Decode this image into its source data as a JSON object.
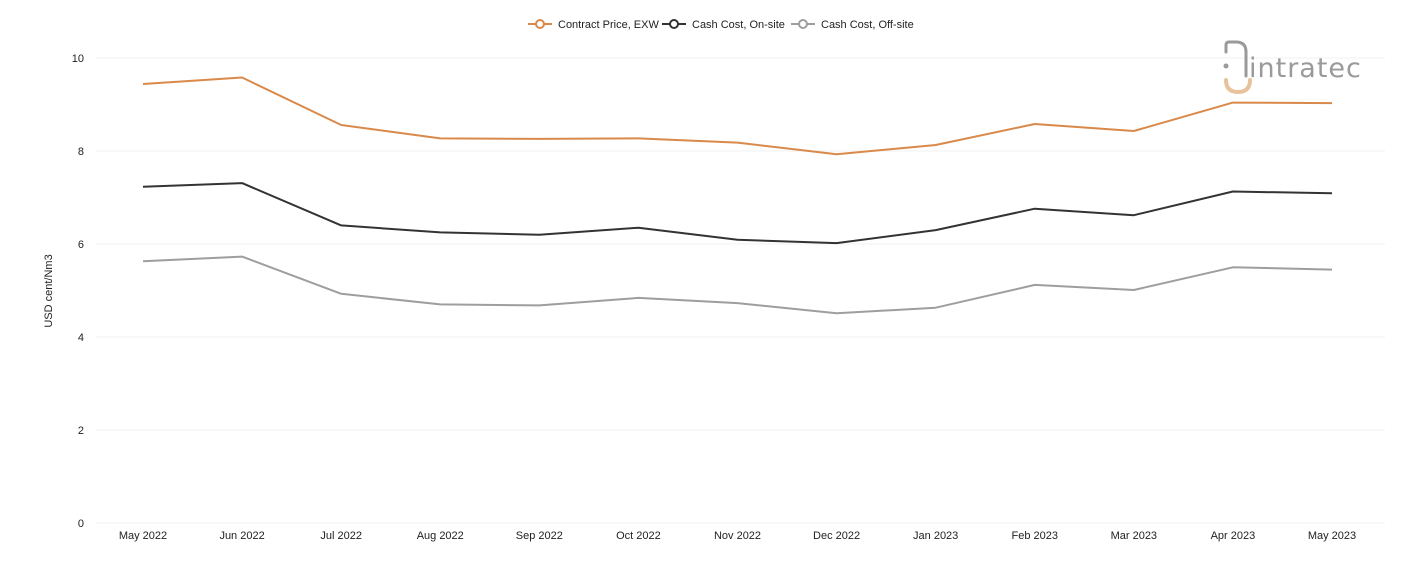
{
  "chart_data": {
    "type": "line",
    "title": "",
    "xlabel": "",
    "ylabel": "USD cent/Nm3",
    "ylim": [
      0,
      10
    ],
    "yticks": [
      0,
      2,
      4,
      6,
      8,
      10
    ],
    "grid": true,
    "legend_position": "top-center",
    "categories": [
      "May 2022",
      "Jun 2022",
      "Jul 2022",
      "Aug 2022",
      "Sep 2022",
      "Oct 2022",
      "Nov 2022",
      "Dec 2022",
      "Jan 2023",
      "Feb 2023",
      "Mar 2023",
      "Apr 2023",
      "May 2023"
    ],
    "series": [
      {
        "name": "Contract Price, EXW",
        "color": "#d9894a",
        "values": [
          9.44,
          9.58,
          8.56,
          8.27,
          8.26,
          8.27,
          8.18,
          7.93,
          8.13,
          8.58,
          8.43,
          9.04,
          9.03
        ]
      },
      {
        "name": "Cash Cost, On-site",
        "color": "#333333",
        "values": [
          7.23,
          7.31,
          6.4,
          6.25,
          6.2,
          6.35,
          6.09,
          6.02,
          6.3,
          6.76,
          6.62,
          7.13,
          7.09
        ]
      },
      {
        "name": "Cash Cost, Off-site",
        "color": "#9e9e9e",
        "values": [
          5.63,
          5.73,
          4.93,
          4.7,
          4.68,
          4.84,
          4.73,
          4.51,
          4.63,
          5.12,
          5.01,
          5.5,
          5.45
        ]
      }
    ]
  },
  "watermark": {
    "text": "intratec",
    "icon": "intratec-logo-icon",
    "accent_color": "#e8c29c",
    "text_color": "#9a9a9a"
  }
}
